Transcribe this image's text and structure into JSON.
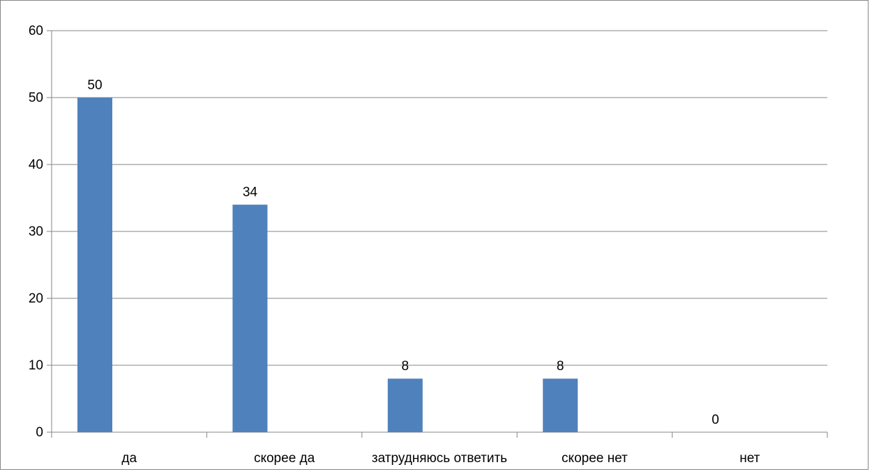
{
  "chart_data": {
    "type": "bar",
    "categories": [
      "да",
      "скорее да",
      "затрудняюсь ответить",
      "скорее нет",
      "нет"
    ],
    "values": [
      50,
      34,
      8,
      8,
      0
    ],
    "data_labels": [
      "50",
      "34",
      "8",
      "8",
      "0"
    ],
    "ylim": [
      0,
      60
    ],
    "yticks": [
      0,
      10,
      20,
      30,
      40,
      50,
      60
    ],
    "ytick_labels": [
      "0",
      "10",
      "20",
      "30",
      "40",
      "50",
      "60"
    ],
    "grid": true,
    "bar_color": "#4F81BD"
  }
}
